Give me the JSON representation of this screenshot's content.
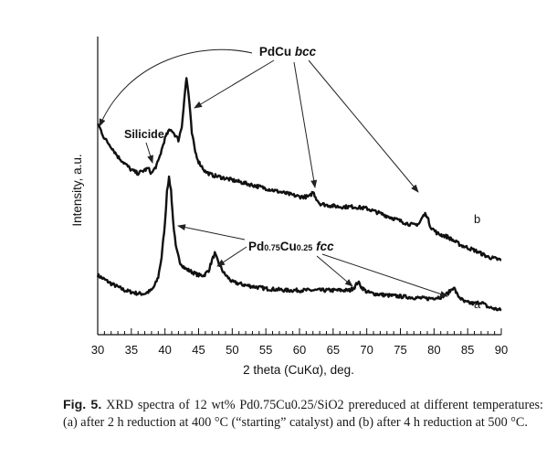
{
  "chart_data": {
    "type": "line",
    "xlabel": "2 theta (CuKα), deg.",
    "ylabel": "Intensity, a.u.",
    "xlim": [
      30,
      90
    ],
    "xticks_labeled": [
      30,
      35,
      40,
      45,
      50,
      55,
      60,
      65,
      70,
      75,
      80,
      85,
      90
    ],
    "minor_tick_step": 1,
    "yticks": "none",
    "grid": false,
    "series": [
      {
        "name": "a",
        "x": [
          30,
          32,
          34,
          36,
          37,
          38,
          38.5,
          39,
          39.5,
          40,
          40.3,
          40.6,
          40.9,
          41.2,
          41.6,
          42.2,
          43,
          44,
          45,
          45.8,
          46.5,
          47,
          47.4,
          48,
          48.8,
          50,
          52,
          55,
          58,
          61,
          64,
          66,
          67.5,
          68.2,
          68.7,
          69.2,
          70,
          71,
          73,
          76,
          79,
          81,
          82,
          82.5,
          82.9,
          83.5,
          84.5,
          86,
          87,
          88,
          90
        ],
        "y": [
          29,
          24,
          20,
          18,
          18,
          20,
          23,
          28,
          40,
          60,
          80,
          87,
          80,
          62,
          46,
          37,
          33,
          31,
          29,
          29,
          32,
          38,
          42,
          36,
          30,
          25,
          23,
          21,
          20,
          20,
          20,
          20,
          20,
          22,
          25,
          22,
          19,
          18,
          17,
          16,
          15,
          16,
          18,
          20,
          22,
          17,
          13,
          12,
          13,
          10,
          8
        ]
      },
      {
        "name": "b",
        "x": [
          30,
          31,
          32,
          33,
          34,
          35,
          36,
          37,
          37.5,
          38,
          38.5,
          39,
          39.5,
          40,
          40.5,
          41,
          41.5,
          42,
          42.5,
          43,
          43.2,
          43.5,
          44,
          44.5,
          45,
          46,
          47,
          48,
          50,
          52,
          55,
          58,
          60,
          61.5,
          62,
          62.5,
          63,
          64,
          66,
          68,
          70,
          72,
          74,
          76,
          77,
          77.8,
          78.3,
          78.8,
          79.5,
          80.5,
          82,
          84,
          86,
          88,
          90
        ],
        "y": [
          120,
          111,
          106,
          100,
          96,
          92,
          90,
          92,
          93,
          90,
          93,
          97,
          104,
          111,
          115,
          116,
          113,
          110,
          118,
          140,
          147,
          138,
          114,
          103,
          97,
          91,
          89,
          88,
          86,
          84,
          81,
          78,
          76,
          76,
          79,
          75,
          72,
          71,
          70,
          70,
          69,
          66,
          63,
          60,
          59,
          60,
          64,
          66,
          58,
          54,
          52,
          47,
          44,
          40,
          38
        ]
      }
    ],
    "series_labels": [
      "a",
      "b"
    ],
    "annotations": {
      "pdcu_bcc": "PdCu bcc",
      "silicide": "Silicide",
      "pd_cu_fcc": {
        "parts": [
          {
            "text": "Pd",
            "style": "normal"
          },
          {
            "text": "0.75",
            "style": "small"
          },
          {
            "text": "Cu",
            "style": "normal"
          },
          {
            "text": "0.25",
            "style": "small"
          },
          {
            "text": " fcc",
            "style": "italic"
          }
        ]
      }
    }
  },
  "caption": {
    "label": "Fig. 5.",
    "text": "XRD spectra of 12 wt% Pd0.75Cu0.25/SiO2 prereduced at different temperatures: (a) after 2 h reduction at 400 °C (“starting” catalyst) and (b) after 4 h reduction at 500 °C."
  }
}
